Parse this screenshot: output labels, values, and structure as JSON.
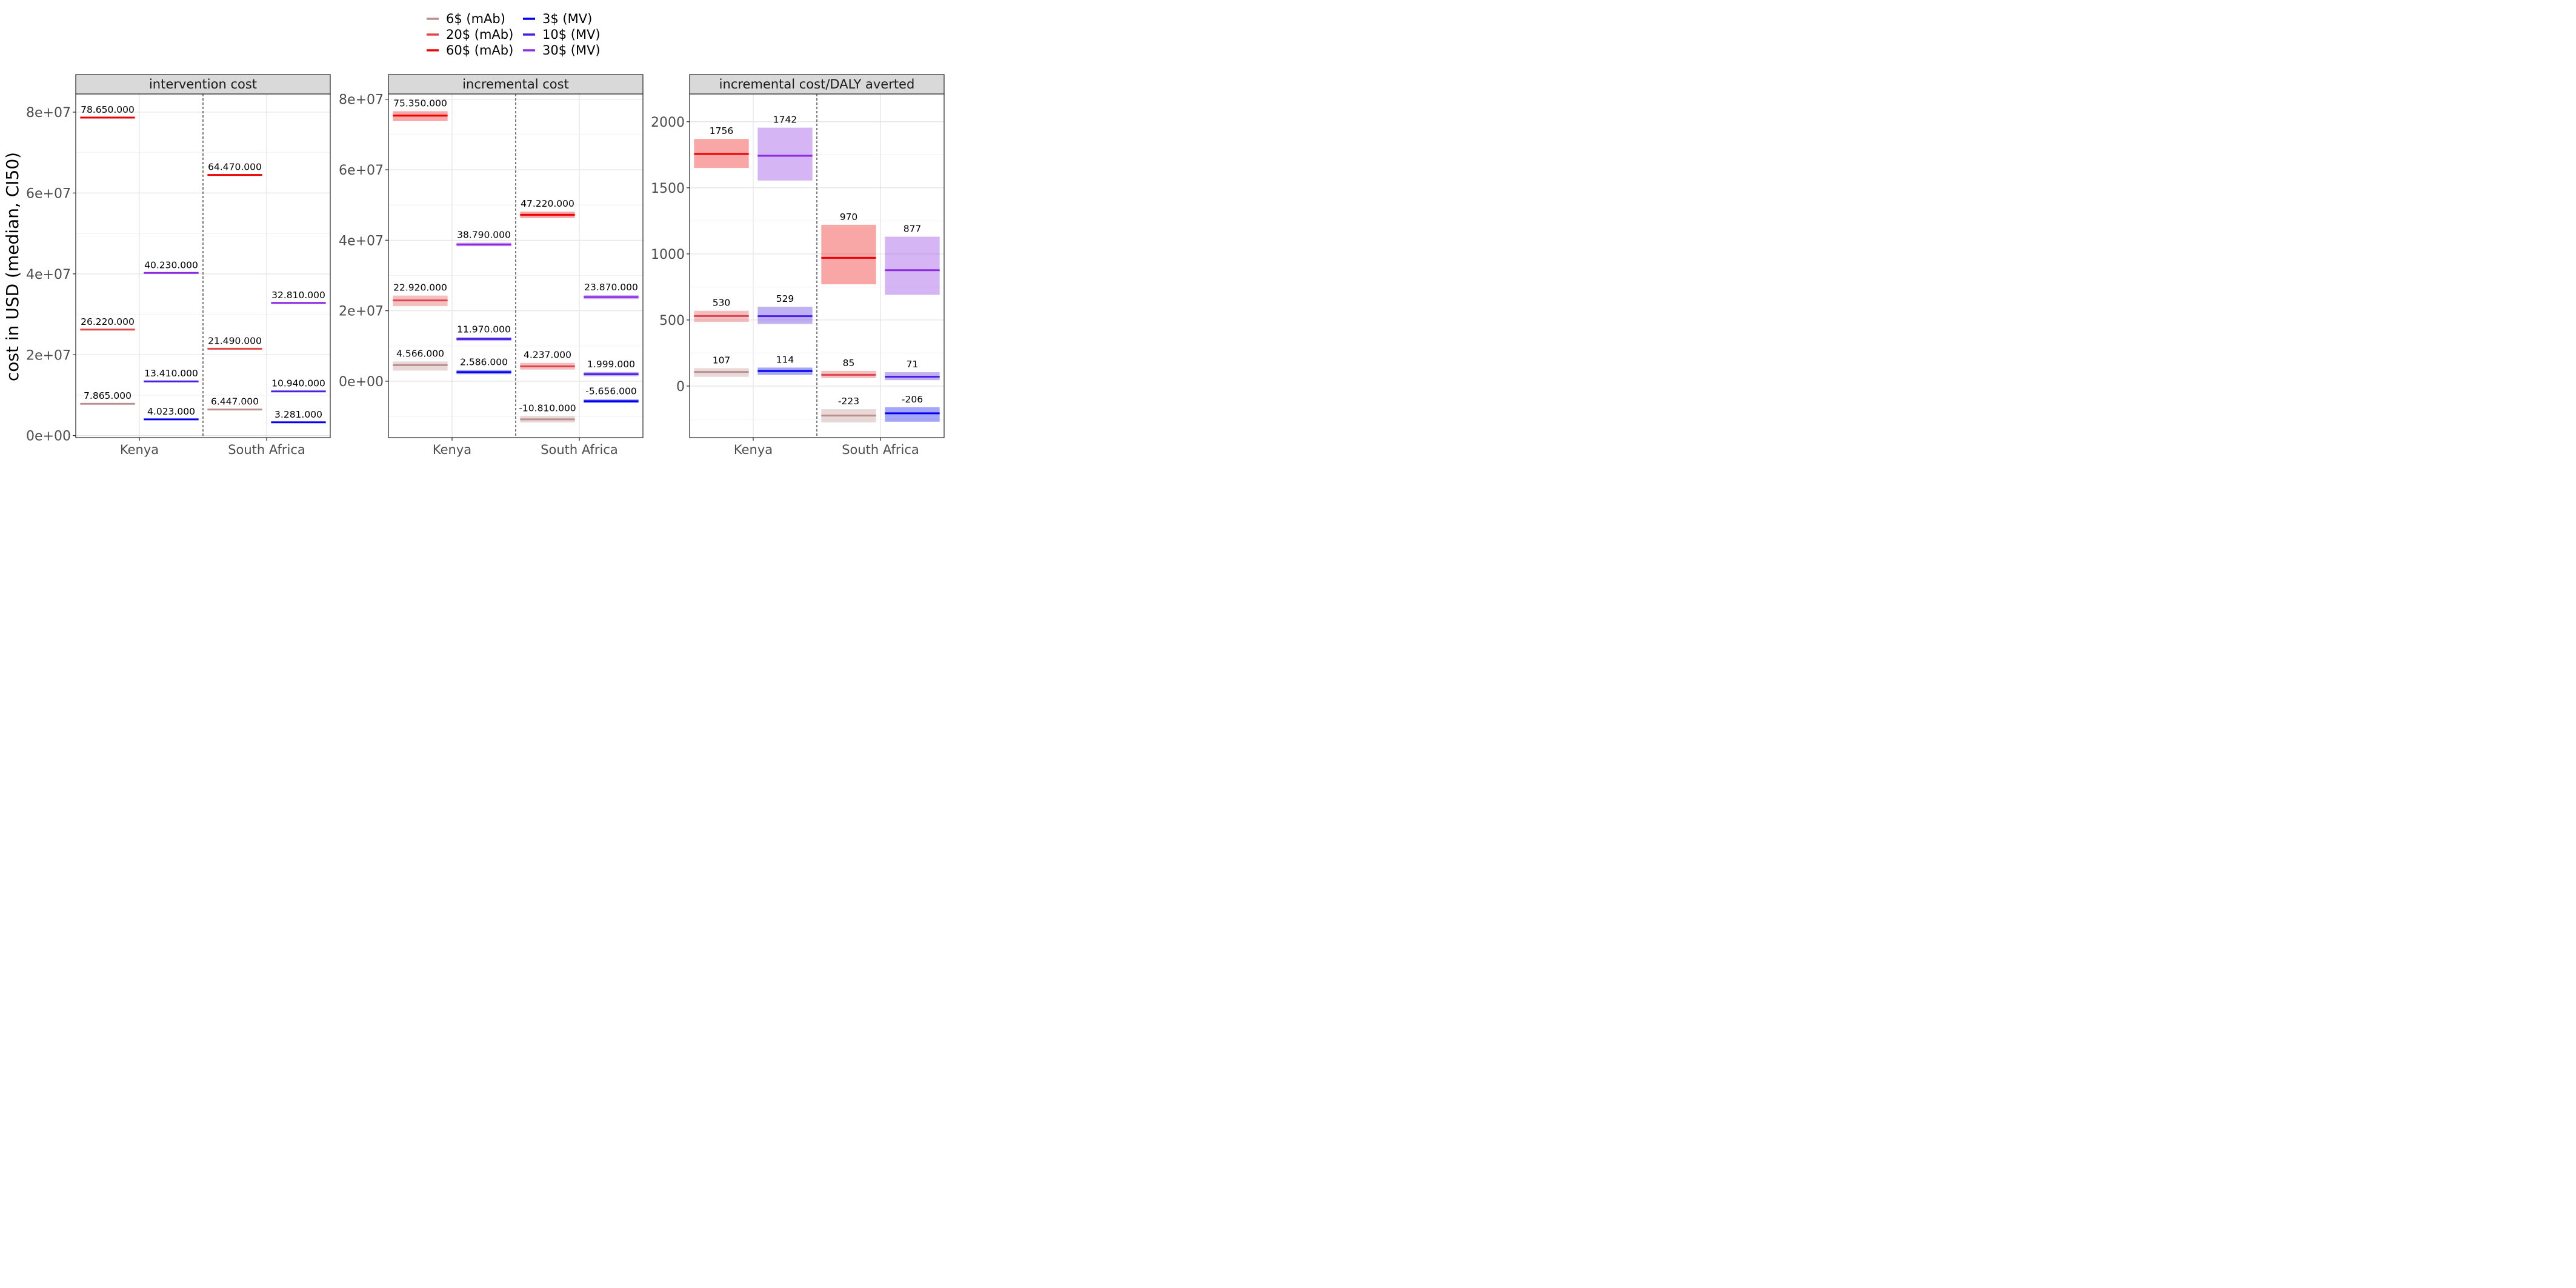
{
  "figure": {
    "ylabel": "cost in USD (median, CI50)",
    "categories": [
      "Kenya",
      "South Africa"
    ]
  },
  "legend": {
    "placement": "top",
    "items": [
      {
        "label": "6$ (mAb)",
        "color": "#BC8F8F"
      },
      {
        "label": "20$ (mAb)",
        "color": "#E0474C"
      },
      {
        "label": "60$ (mAb)",
        "color": "#EE0000"
      },
      {
        "label": "3$ (MV)",
        "color": "#0000EE"
      },
      {
        "label": "10$ (MV)",
        "color": "#4B1FE0"
      },
      {
        "label": "30$ (MV)",
        "color": "#8A2BE2"
      }
    ]
  },
  "chart_data": [
    {
      "type": "crossbar",
      "title": "intervention cost",
      "categories": [
        "Kenya",
        "South Africa"
      ],
      "ylim": [
        -500000,
        84500000
      ],
      "ticks": [
        0,
        20000000,
        40000000,
        60000000,
        80000000
      ],
      "tick_labels": [
        "0e+00",
        "2e+07",
        "4e+07",
        "6e+07",
        "8e+07"
      ],
      "series": [
        {
          "name": "6$ (mAb)",
          "group": "mAb",
          "values": [
            7865000,
            6447000
          ],
          "lower": [
            7865000,
            6447000
          ],
          "upper": [
            7865000,
            6447000
          ],
          "labels": [
            "7.865.000",
            "6.447.000"
          ]
        },
        {
          "name": "20$ (mAb)",
          "group": "mAb",
          "values": [
            26220000,
            21490000
          ],
          "lower": [
            26220000,
            21490000
          ],
          "upper": [
            26220000,
            21490000
          ],
          "labels": [
            "26.220.000",
            "21.490.000"
          ]
        },
        {
          "name": "60$ (mAb)",
          "group": "mAb",
          "values": [
            78650000,
            64470000
          ],
          "lower": [
            78650000,
            64470000
          ],
          "upper": [
            78650000,
            64470000
          ],
          "labels": [
            "78.650.000",
            "64.470.000"
          ]
        },
        {
          "name": "3$ (MV)",
          "group": "MV",
          "values": [
            4023000,
            3281000
          ],
          "lower": [
            4023000,
            3281000
          ],
          "upper": [
            4023000,
            3281000
          ],
          "labels": [
            "4.023.000",
            "3.281.000"
          ]
        },
        {
          "name": "10$ (MV)",
          "group": "MV",
          "values": [
            13410000,
            10940000
          ],
          "lower": [
            13410000,
            10940000
          ],
          "upper": [
            13410000,
            10940000
          ],
          "labels": [
            "13.410.000",
            "10.940.000"
          ]
        },
        {
          "name": "30$ (MV)",
          "group": "MV",
          "values": [
            40230000,
            32810000
          ],
          "lower": [
            40230000,
            32810000
          ],
          "upper": [
            40230000,
            32810000
          ],
          "labels": [
            "40.230.000",
            "32.810.000"
          ]
        }
      ]
    },
    {
      "type": "crossbar",
      "title": "incremental cost",
      "categories": [
        "Kenya",
        "South Africa"
      ],
      "ylim": [
        -16000000,
        81500000
      ],
      "ticks": [
        0,
        20000000,
        40000000,
        60000000,
        80000000
      ],
      "tick_labels": [
        "0e+00",
        "2e+07",
        "4e+07",
        "6e+07",
        "8e+07"
      ],
      "series": [
        {
          "name": "6$ (mAb)",
          "group": "mAb",
          "values": [
            4566000,
            -10810000
          ],
          "lower": [
            3000000,
            -11700000
          ],
          "upper": [
            5600000,
            -9900000
          ],
          "labels": [
            "4.566.000",
            "-10.810.000"
          ]
        },
        {
          "name": "20$ (mAb)",
          "group": "mAb",
          "values": [
            22920000,
            4237000
          ],
          "lower": [
            21300000,
            3300000
          ],
          "upper": [
            24300000,
            5200000
          ],
          "labels": [
            "22.920.000",
            "4.237.000"
          ]
        },
        {
          "name": "60$ (mAb)",
          "group": "mAb",
          "values": [
            75350000,
            47220000
          ],
          "lower": [
            73800000,
            46300000
          ],
          "upper": [
            76600000,
            48100000
          ],
          "labels": [
            "75.350.000",
            "47.220.000"
          ]
        },
        {
          "name": "3$ (MV)",
          "group": "MV",
          "values": [
            2586000,
            -5656000
          ],
          "lower": [
            2000000,
            -6200000
          ],
          "upper": [
            3200000,
            -5100000
          ],
          "labels": [
            "2.586.000",
            "-5.656.000"
          ]
        },
        {
          "name": "10$ (MV)",
          "group": "MV",
          "values": [
            11970000,
            1999000
          ],
          "lower": [
            11400000,
            1400000
          ],
          "upper": [
            12500000,
            2600000
          ],
          "labels": [
            "11.970.000",
            "1.999.000"
          ]
        },
        {
          "name": "30$ (MV)",
          "group": "MV",
          "values": [
            38790000,
            23870000
          ],
          "lower": [
            38300000,
            23300000
          ],
          "upper": [
            39300000,
            24400000
          ],
          "labels": [
            "38.790.000",
            "23.870.000"
          ]
        }
      ]
    },
    {
      "type": "crossbar",
      "title": "incremental cost/DALY averted",
      "categories": [
        "Kenya",
        "South Africa"
      ],
      "ylim": [
        -390,
        2210
      ],
      "ticks": [
        0,
        500,
        1000,
        1500,
        2000
      ],
      "tick_labels": [
        "0",
        "500",
        "1000",
        "1500",
        "2000"
      ],
      "series": [
        {
          "name": "6$ (mAb)",
          "group": "mAb",
          "values": [
            107,
            -223
          ],
          "lower": [
            70,
            -275
          ],
          "upper": [
            135,
            -175
          ],
          "labels": [
            "107",
            "-223"
          ]
        },
        {
          "name": "20$ (mAb)",
          "group": "mAb",
          "values": [
            530,
            85
          ],
          "lower": [
            485,
            60
          ],
          "upper": [
            570,
            115
          ],
          "labels": [
            "530",
            "85"
          ]
        },
        {
          "name": "60$ (mAb)",
          "group": "mAb",
          "values": [
            1756,
            970
          ],
          "lower": [
            1650,
            770
          ],
          "upper": [
            1870,
            1220
          ],
          "labels": [
            "1756",
            "970"
          ]
        },
        {
          "name": "3$ (MV)",
          "group": "MV",
          "values": [
            114,
            -206
          ],
          "lower": [
            85,
            -270
          ],
          "upper": [
            140,
            -160
          ],
          "labels": [
            "114",
            "-206"
          ]
        },
        {
          "name": "10$ (MV)",
          "group": "MV",
          "values": [
            529,
            71
          ],
          "lower": [
            470,
            45
          ],
          "upper": [
            600,
            105
          ],
          "labels": [
            "529",
            "71"
          ]
        },
        {
          "name": "30$ (MV)",
          "group": "MV",
          "values": [
            1742,
            877
          ],
          "lower": [
            1555,
            690
          ],
          "upper": [
            1955,
            1130
          ],
          "labels": [
            "1742",
            "877"
          ]
        }
      ]
    }
  ]
}
